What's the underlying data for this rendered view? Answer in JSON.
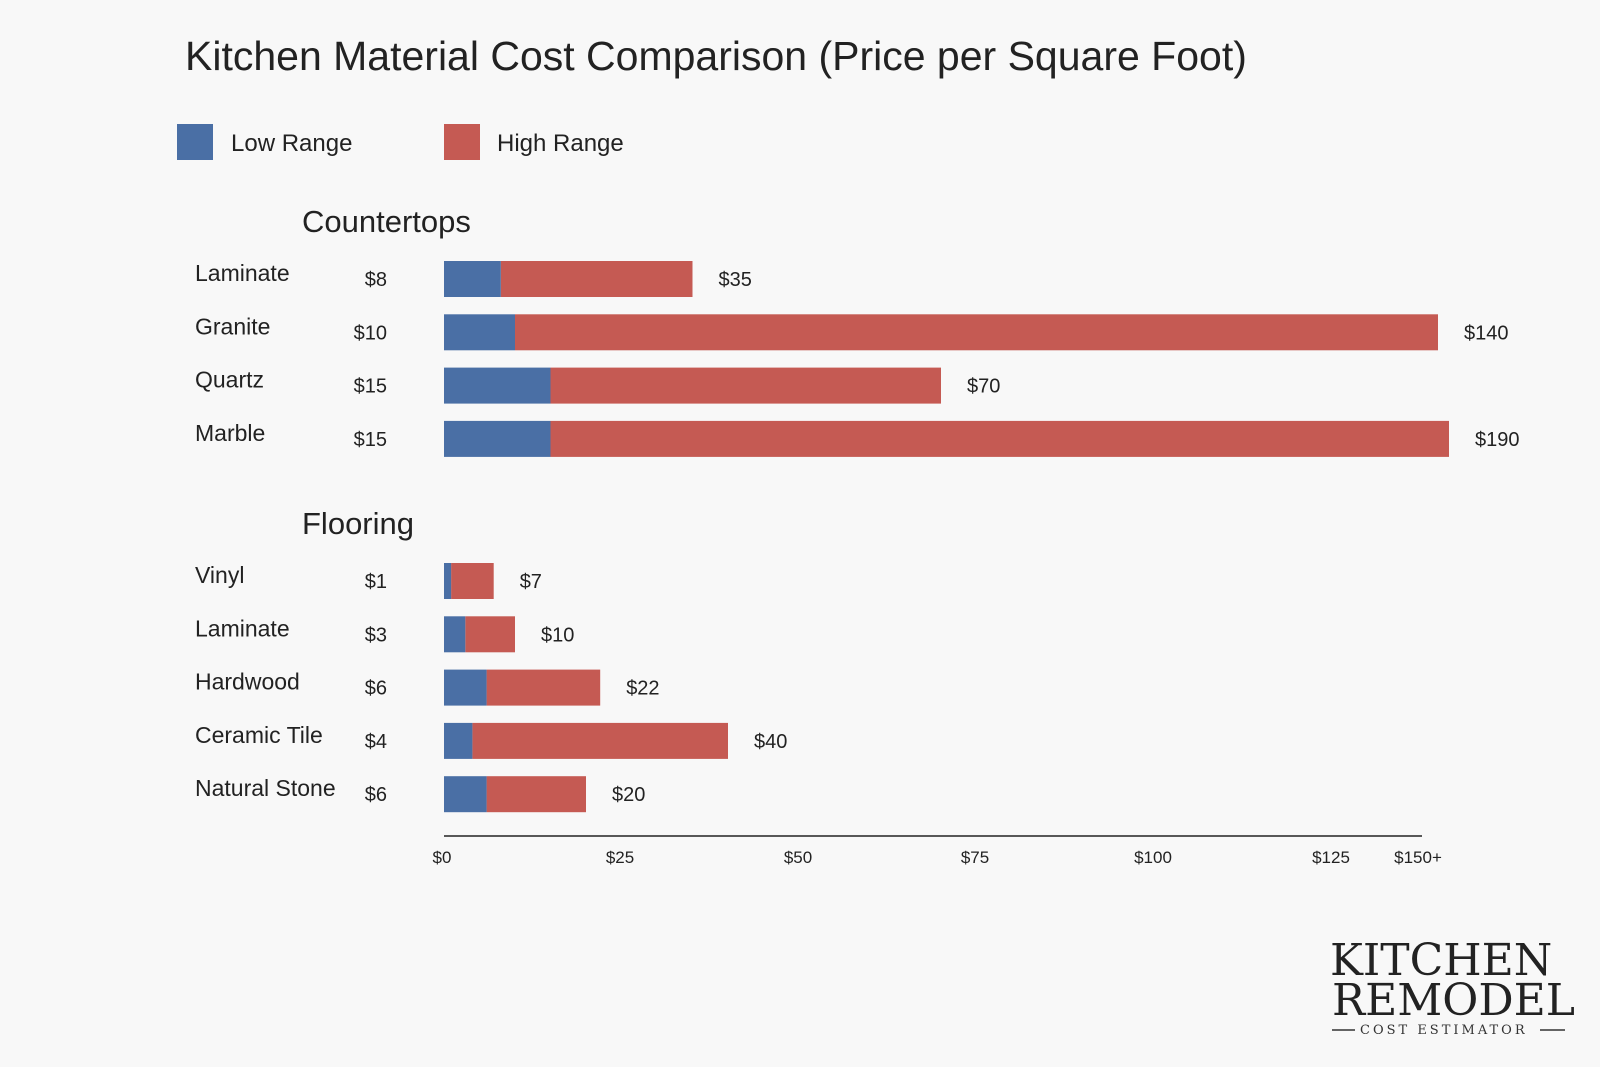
{
  "chart_data": {
    "type": "bar",
    "orientation": "horizontal",
    "stacked": true,
    "title": "Kitchen Material Cost Comparison (Price per Square Foot)",
    "unit": "$ per square foot",
    "legend": [
      {
        "name": "Low Range",
        "color": "#4a6fa5"
      },
      {
        "name": "High Range",
        "color": "#c55a53"
      }
    ],
    "legend_position": "top-left",
    "groups": [
      {
        "name": "Countertops",
        "items": [
          {
            "label": "Laminate",
            "low": 8,
            "high": 35,
            "low_label": "$8",
            "high_label": "$35"
          },
          {
            "label": "Granite",
            "low": 10,
            "high": 140,
            "low_label": "$10",
            "high_label": "$140"
          },
          {
            "label": "Quartz",
            "low": 15,
            "high": 70,
            "low_label": "$15",
            "high_label": "$70"
          },
          {
            "label": "Marble",
            "low": 15,
            "high": 190,
            "low_label": "$15",
            "high_label": "$190"
          }
        ]
      },
      {
        "name": "Flooring",
        "items": [
          {
            "label": "Vinyl",
            "low": 1,
            "high": 7,
            "low_label": "$1",
            "high_label": "$7"
          },
          {
            "label": "Laminate",
            "low": 3,
            "high": 10,
            "low_label": "$3",
            "high_label": "$10"
          },
          {
            "label": "Hardwood",
            "low": 6,
            "high": 22,
            "low_label": "$6",
            "high_label": "$22"
          },
          {
            "label": "Ceramic Tile",
            "low": 4,
            "high": 40,
            "low_label": "$4",
            "high_label": "$40"
          },
          {
            "label": "Natural Stone",
            "low": 6,
            "high": 20,
            "low_label": "$6",
            "high_label": "$20"
          }
        ]
      }
    ],
    "x_ticks": [
      {
        "value": 0,
        "label": "$0"
      },
      {
        "value": 25,
        "label": "$25"
      },
      {
        "value": 50,
        "label": "$50"
      },
      {
        "value": 75,
        "label": "$75"
      },
      {
        "value": 100,
        "label": "$100"
      },
      {
        "value": 125,
        "label": "$125"
      },
      {
        "value": 150,
        "label": "$150+"
      }
    ],
    "xlim": [
      0,
      150
    ],
    "overflow_cap": 150
  },
  "brand": {
    "line1": "KITCHEN",
    "line2": "REMODEL",
    "line3": "COST ESTIMATOR"
  }
}
